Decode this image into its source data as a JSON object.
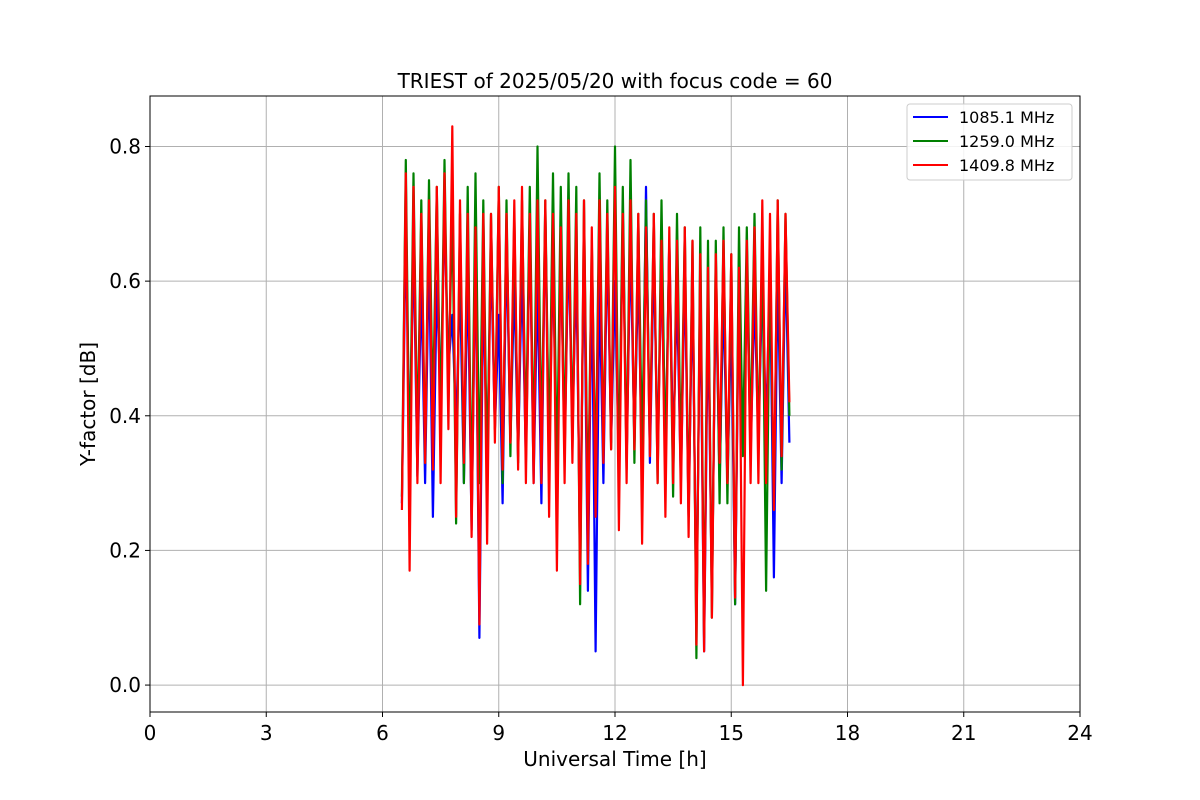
{
  "chart_data": {
    "type": "line",
    "title": "TRIEST of 2025/05/20 with focus code = 60",
    "xlabel": "Universal Time [h]",
    "ylabel": "Y-factor [dB]",
    "xlim": [
      0,
      24
    ],
    "ylim": [
      -0.04,
      0.875
    ],
    "xticks": [
      0,
      3,
      6,
      9,
      12,
      15,
      18,
      21,
      24
    ],
    "yticks": [
      0.0,
      0.2,
      0.4,
      0.6,
      0.8
    ],
    "xtick_labels": [
      "0",
      "3",
      "6",
      "9",
      "12",
      "15",
      "18",
      "21",
      "24"
    ],
    "ytick_labels": [
      "0.0",
      "0.2",
      "0.4",
      "0.6",
      "0.8"
    ],
    "grid": true,
    "legend_position": "top-right",
    "series": [
      {
        "name": "1085.1 MHz",
        "color": "#0000ff",
        "x": [
          6.5,
          6.6,
          6.7,
          6.8,
          6.9,
          7.0,
          7.1,
          7.2,
          7.3,
          7.4,
          7.5,
          7.6,
          7.7,
          7.8,
          7.9,
          8.0,
          8.1,
          8.2,
          8.3,
          8.4,
          8.5,
          8.6,
          8.7,
          8.8,
          8.9,
          9.0,
          9.1,
          9.2,
          9.3,
          9.4,
          9.5,
          9.6,
          9.7,
          9.8,
          9.9,
          10.0,
          10.1,
          10.2,
          10.3,
          10.4,
          10.5,
          10.6,
          10.7,
          10.8,
          10.9,
          11.0,
          11.1,
          11.2,
          11.3,
          11.4,
          11.5,
          11.6,
          11.7,
          11.8,
          11.9,
          12.0,
          12.1,
          12.2,
          12.3,
          12.4,
          12.5,
          12.6,
          12.7,
          12.8,
          12.9,
          13.0,
          13.1,
          13.2,
          13.3,
          13.4,
          13.5,
          13.6,
          13.7,
          13.8,
          13.9,
          14.0,
          14.1,
          14.2,
          14.3,
          14.4,
          14.5,
          14.6,
          14.7,
          14.8,
          14.9,
          15.0,
          15.1,
          15.2,
          15.3,
          15.4,
          15.5,
          15.6,
          15.7,
          15.8,
          15.9,
          16.0,
          16.1,
          16.2,
          16.3,
          16.4,
          16.5
        ],
        "y": [
          0.27,
          0.68,
          0.35,
          0.66,
          0.31,
          0.6,
          0.3,
          0.65,
          0.25,
          0.6,
          0.42,
          0.7,
          0.47,
          0.55,
          0.38,
          0.6,
          0.3,
          0.62,
          0.23,
          0.65,
          0.07,
          0.6,
          0.33,
          0.64,
          0.38,
          0.55,
          0.27,
          0.66,
          0.36,
          0.6,
          0.34,
          0.62,
          0.33,
          0.68,
          0.3,
          0.6,
          0.27,
          0.7,
          0.33,
          0.64,
          0.3,
          0.65,
          0.34,
          0.66,
          0.38,
          0.62,
          0.2,
          0.66,
          0.14,
          0.62,
          0.05,
          0.6,
          0.3,
          0.66,
          0.36,
          0.6,
          0.32,
          0.7,
          0.33,
          0.66,
          0.36,
          0.62,
          0.3,
          0.74,
          0.33,
          0.64,
          0.35,
          0.62,
          0.33,
          0.66,
          0.35,
          0.58,
          0.3,
          0.62,
          0.25,
          0.6,
          0.1,
          0.6,
          0.05,
          0.56,
          0.13,
          0.6,
          0.3,
          0.58,
          0.3,
          0.55,
          0.12,
          0.6,
          0.35,
          0.62,
          0.34,
          0.58,
          0.36,
          0.6,
          0.38,
          0.62,
          0.16,
          0.62,
          0.3,
          0.64,
          0.36
        ]
      },
      {
        "name": "1259.0 MHz",
        "color": "#008000",
        "x": [
          6.5,
          6.6,
          6.7,
          6.8,
          6.9,
          7.0,
          7.1,
          7.2,
          7.3,
          7.4,
          7.5,
          7.6,
          7.7,
          7.8,
          7.9,
          8.0,
          8.1,
          8.2,
          8.3,
          8.4,
          8.5,
          8.6,
          8.7,
          8.8,
          8.9,
          9.0,
          9.1,
          9.2,
          9.3,
          9.4,
          9.5,
          9.6,
          9.7,
          9.8,
          9.9,
          10.0,
          10.1,
          10.2,
          10.3,
          10.4,
          10.5,
          10.6,
          10.7,
          10.8,
          10.9,
          11.0,
          11.1,
          11.2,
          11.3,
          11.4,
          11.5,
          11.6,
          11.7,
          11.8,
          11.9,
          12.0,
          12.1,
          12.2,
          12.3,
          12.4,
          12.5,
          12.6,
          12.7,
          12.8,
          12.9,
          13.0,
          13.1,
          13.2,
          13.3,
          13.4,
          13.5,
          13.6,
          13.7,
          13.8,
          13.9,
          14.0,
          14.1,
          14.2,
          14.3,
          14.4,
          14.5,
          14.6,
          14.7,
          14.8,
          14.9,
          15.0,
          15.1,
          15.2,
          15.3,
          15.4,
          15.5,
          15.6,
          15.7,
          15.8,
          15.9,
          16.0,
          16.1,
          16.2,
          16.3,
          16.4,
          16.5
        ],
        "y": [
          0.28,
          0.78,
          0.3,
          0.76,
          0.35,
          0.72,
          0.33,
          0.75,
          0.4,
          0.74,
          0.38,
          0.78,
          0.42,
          0.72,
          0.24,
          0.7,
          0.3,
          0.74,
          0.26,
          0.76,
          0.3,
          0.72,
          0.3,
          0.7,
          0.38,
          0.74,
          0.3,
          0.72,
          0.34,
          0.7,
          0.33,
          0.72,
          0.36,
          0.74,
          0.33,
          0.8,
          0.35,
          0.72,
          0.34,
          0.76,
          0.3,
          0.74,
          0.34,
          0.76,
          0.35,
          0.74,
          0.12,
          0.72,
          0.25,
          0.66,
          0.3,
          0.76,
          0.34,
          0.72,
          0.35,
          0.8,
          0.3,
          0.74,
          0.32,
          0.78,
          0.33,
          0.7,
          0.34,
          0.72,
          0.36,
          0.7,
          0.3,
          0.72,
          0.33,
          0.66,
          0.28,
          0.7,
          0.33,
          0.68,
          0.25,
          0.66,
          0.04,
          0.68,
          0.07,
          0.66,
          0.1,
          0.66,
          0.27,
          0.68,
          0.27,
          0.64,
          0.12,
          0.68,
          0.34,
          0.68,
          0.36,
          0.7,
          0.35,
          0.66,
          0.14,
          0.64,
          0.26,
          0.72,
          0.32,
          0.7,
          0.4
        ]
      },
      {
        "name": "1409.8 MHz",
        "color": "#ff0000",
        "x": [
          6.5,
          6.6,
          6.7,
          6.8,
          6.9,
          7.0,
          7.1,
          7.2,
          7.3,
          7.4,
          7.5,
          7.6,
          7.7,
          7.8,
          7.9,
          8.0,
          8.1,
          8.2,
          8.3,
          8.4,
          8.5,
          8.6,
          8.7,
          8.8,
          8.9,
          9.0,
          9.1,
          9.2,
          9.3,
          9.4,
          9.5,
          9.6,
          9.7,
          9.8,
          9.9,
          10.0,
          10.1,
          10.2,
          10.3,
          10.4,
          10.5,
          10.6,
          10.7,
          10.8,
          10.9,
          11.0,
          11.1,
          11.2,
          11.3,
          11.4,
          11.5,
          11.6,
          11.7,
          11.8,
          11.9,
          12.0,
          12.1,
          12.2,
          12.3,
          12.4,
          12.5,
          12.6,
          12.7,
          12.8,
          12.9,
          13.0,
          13.1,
          13.2,
          13.3,
          13.4,
          13.5,
          13.6,
          13.7,
          13.8,
          13.9,
          14.0,
          14.1,
          14.2,
          14.3,
          14.4,
          14.5,
          14.6,
          14.7,
          14.8,
          14.9,
          15.0,
          15.1,
          15.2,
          15.3,
          15.4,
          15.5,
          15.6,
          15.7,
          15.8,
          15.9,
          16.0,
          16.1,
          16.2,
          16.3,
          16.4,
          16.5
        ],
        "y": [
          0.26,
          0.76,
          0.17,
          0.74,
          0.3,
          0.7,
          0.33,
          0.72,
          0.32,
          0.74,
          0.3,
          0.76,
          0.38,
          0.83,
          0.25,
          0.72,
          0.33,
          0.7,
          0.22,
          0.68,
          0.09,
          0.7,
          0.21,
          0.7,
          0.36,
          0.74,
          0.32,
          0.7,
          0.36,
          0.72,
          0.32,
          0.74,
          0.3,
          0.7,
          0.3,
          0.72,
          0.3,
          0.72,
          0.25,
          0.7,
          0.17,
          0.68,
          0.3,
          0.72,
          0.33,
          0.7,
          0.15,
          0.72,
          0.18,
          0.68,
          0.25,
          0.72,
          0.33,
          0.7,
          0.35,
          0.74,
          0.23,
          0.7,
          0.3,
          0.72,
          0.35,
          0.7,
          0.21,
          0.68,
          0.34,
          0.7,
          0.3,
          0.66,
          0.25,
          0.68,
          0.3,
          0.66,
          0.27,
          0.68,
          0.22,
          0.66,
          0.06,
          0.64,
          0.05,
          0.62,
          0.1,
          0.64,
          0.33,
          0.66,
          0.3,
          0.64,
          0.13,
          0.62,
          0.0,
          0.66,
          0.3,
          0.68,
          0.3,
          0.72,
          0.3,
          0.7,
          0.26,
          0.72,
          0.34,
          0.7,
          0.42
        ]
      }
    ]
  }
}
